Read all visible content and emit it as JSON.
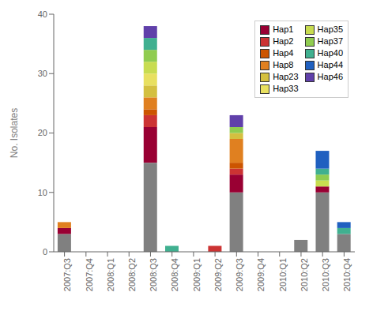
{
  "chart_data": {
    "type": "bar",
    "stacked": true,
    "categories": [
      "2007:Q3",
      "2007:Q4",
      "2008:Q1",
      "2008:Q2",
      "2008:Q3",
      "2008:Q4",
      "2009:Q1",
      "2009:Q2",
      "2009:Q3",
      "2009:Q4",
      "2010:Q1",
      "2010:Q2",
      "2010:Q3",
      "2010:Q4"
    ],
    "ylabel": "No. Isolates",
    "ylim": [
      0,
      40
    ],
    "yticks": [
      0,
      10,
      20,
      30,
      40
    ],
    "grid": false,
    "legend": "upper right",
    "series": [
      {
        "color": "#808080",
        "values": [
          3,
          0,
          0,
          0,
          15,
          0,
          0,
          0,
          10,
          0,
          0,
          2,
          10,
          3
        ]
      },
      {
        "name": "Hap1",
        "color": "#990033",
        "values": [
          1,
          0,
          0,
          0,
          6,
          0,
          0,
          0,
          3,
          0,
          0,
          0,
          1,
          0
        ]
      },
      {
        "name": "Hap2",
        "color": "#CC3333",
        "values": [
          0,
          0,
          0,
          0,
          2,
          0,
          0,
          1,
          1,
          0,
          0,
          0,
          0,
          0
        ]
      },
      {
        "name": "Hap4",
        "color": "#CC5500",
        "values": [
          0,
          0,
          0,
          0,
          1,
          0,
          0,
          0,
          1,
          0,
          0,
          0,
          0,
          0
        ]
      },
      {
        "name": "Hap8",
        "color": "#E08020",
        "values": [
          1,
          0,
          0,
          0,
          2,
          0,
          0,
          0,
          4,
          0,
          0,
          0,
          0,
          0
        ]
      },
      {
        "name": "Hap23",
        "color": "#D4C040",
        "values": [
          0,
          0,
          0,
          0,
          2,
          0,
          0,
          0,
          1,
          0,
          0,
          0,
          0,
          0
        ]
      },
      {
        "name": "Hap33",
        "color": "#E8E060",
        "values": [
          0,
          0,
          0,
          0,
          2,
          0,
          0,
          0,
          0,
          0,
          0,
          0,
          0,
          0
        ]
      },
      {
        "name": "Hap35",
        "color": "#C8DC50",
        "values": [
          0,
          0,
          0,
          0,
          2,
          0,
          0,
          0,
          0,
          0,
          0,
          0,
          1,
          0
        ]
      },
      {
        "name": "Hap37",
        "color": "#90CC50",
        "values": [
          0,
          0,
          0,
          0,
          2,
          0,
          0,
          0,
          1,
          0,
          0,
          0,
          1,
          0
        ]
      },
      {
        "name": "Hap40",
        "color": "#40B090",
        "values": [
          0,
          0,
          0,
          0,
          2,
          1,
          0,
          0,
          0,
          0,
          0,
          0,
          1,
          1
        ]
      },
      {
        "name": "Hap44",
        "color": "#2060C0",
        "values": [
          0,
          0,
          0,
          0,
          0,
          0,
          0,
          0,
          0,
          0,
          0,
          0,
          3,
          1
        ]
      },
      {
        "name": "Hap46",
        "color": "#6040AA",
        "values": [
          0,
          0,
          0,
          0,
          2,
          0,
          0,
          0,
          2,
          0,
          0,
          0,
          0,
          0
        ]
      }
    ]
  }
}
